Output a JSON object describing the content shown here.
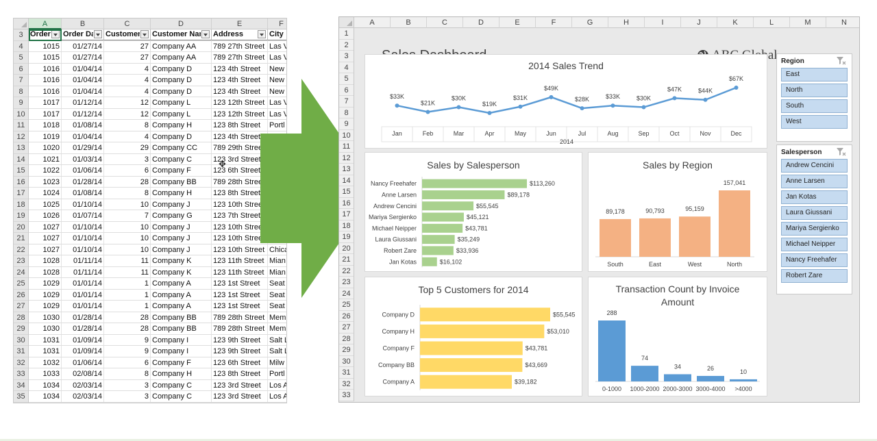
{
  "sheet": {
    "column_letters": [
      "A",
      "B",
      "C",
      "D",
      "E",
      "F"
    ],
    "headers": [
      "Order",
      "Order Da",
      "Customer",
      "Customer Nan",
      "Address",
      "City"
    ],
    "row_numbers": [
      3,
      4,
      5,
      6,
      7,
      8,
      9,
      10,
      11,
      12,
      13,
      14,
      15,
      16,
      17,
      18,
      19,
      20,
      21,
      22,
      23,
      24,
      25,
      26,
      27,
      28,
      29,
      30,
      31,
      32,
      33,
      34,
      35
    ],
    "rows": [
      [
        "1015",
        "01/27/14",
        "27",
        "Company AA",
        "789 27th Street",
        "Las V"
      ],
      [
        "1015",
        "01/27/14",
        "27",
        "Company AA",
        "789 27th Street",
        "Las V"
      ],
      [
        "1016",
        "01/04/14",
        "4",
        "Company D",
        "123 4th Street",
        "New"
      ],
      [
        "1016",
        "01/04/14",
        "4",
        "Company D",
        "123 4th Street",
        "New"
      ],
      [
        "1016",
        "01/04/14",
        "4",
        "Company D",
        "123 4th Street",
        "New"
      ],
      [
        "1017",
        "01/12/14",
        "12",
        "Company L",
        "123 12th Street",
        "Las V"
      ],
      [
        "1017",
        "01/12/14",
        "12",
        "Company L",
        "123 12th Street",
        "Las V"
      ],
      [
        "1018",
        "01/08/14",
        "8",
        "Company H",
        "123 8th Street",
        "Portl"
      ],
      [
        "1019",
        "01/04/14",
        "4",
        "Company D",
        "123 4th Street",
        ""
      ],
      [
        "1020",
        "01/29/14",
        "29",
        "Company CC",
        "789 29th Street",
        ""
      ],
      [
        "1021",
        "01/03/14",
        "3",
        "Company C",
        "123 3rd Street",
        ""
      ],
      [
        "1022",
        "01/06/14",
        "6",
        "Company F",
        "123 6th Street",
        ""
      ],
      [
        "1023",
        "01/28/14",
        "28",
        "Company BB",
        "789 28th Street",
        ""
      ],
      [
        "1024",
        "01/08/14",
        "8",
        "Company H",
        "123 8th Street",
        ""
      ],
      [
        "1025",
        "01/10/14",
        "10",
        "Company J",
        "123 10th Street",
        ""
      ],
      [
        "1026",
        "01/07/14",
        "7",
        "Company G",
        "123 7th Street",
        ""
      ],
      [
        "1027",
        "01/10/14",
        "10",
        "Company J",
        "123 10th Street",
        ""
      ],
      [
        "1027",
        "01/10/14",
        "10",
        "Company J",
        "123 10th Street",
        ""
      ],
      [
        "1027",
        "01/10/14",
        "10",
        "Company J",
        "123 10th Street",
        "Chica"
      ],
      [
        "1028",
        "01/11/14",
        "11",
        "Company K",
        "123 11th Street",
        "Mian"
      ],
      [
        "1028",
        "01/11/14",
        "11",
        "Company K",
        "123 11th Street",
        "Mian"
      ],
      [
        "1029",
        "01/01/14",
        "1",
        "Company A",
        "123 1st Street",
        "Seat"
      ],
      [
        "1029",
        "01/01/14",
        "1",
        "Company A",
        "123 1st Street",
        "Seat"
      ],
      [
        "1029",
        "01/01/14",
        "1",
        "Company A",
        "123 1st Street",
        "Seat"
      ],
      [
        "1030",
        "01/28/14",
        "28",
        "Company BB",
        "789 28th Street",
        "Mem"
      ],
      [
        "1030",
        "01/28/14",
        "28",
        "Company BB",
        "789 28th Street",
        "Mem"
      ],
      [
        "1031",
        "01/09/14",
        "9",
        "Company I",
        "123 9th Street",
        "Salt L"
      ],
      [
        "1031",
        "01/09/14",
        "9",
        "Company I",
        "123 9th Street",
        "Salt L"
      ],
      [
        "1032",
        "01/06/14",
        "6",
        "Company F",
        "123 6th Street",
        "Milw"
      ],
      [
        "1033",
        "02/08/14",
        "8",
        "Company H",
        "123 8th Street",
        "Portl"
      ],
      [
        "1034",
        "02/03/14",
        "3",
        "Company C",
        "123 3rd Street",
        "Los A"
      ],
      [
        "1034",
        "02/03/14",
        "3",
        "Company C",
        "123 3rd Street",
        "Los A"
      ]
    ]
  },
  "dashboard": {
    "column_letters": [
      "A",
      "B",
      "C",
      "D",
      "E",
      "F",
      "G",
      "H",
      "I",
      "J",
      "K",
      "L",
      "M",
      "N"
    ],
    "row_numbers": [
      1,
      2,
      3,
      4,
      5,
      6,
      7,
      8,
      9,
      10,
      11,
      12,
      13,
      14,
      15,
      16,
      17,
      18,
      19,
      20,
      21,
      22,
      23,
      24,
      25,
      26,
      27,
      28,
      29,
      30,
      31,
      32,
      33
    ],
    "title": "Sales Dashboard",
    "brand": "ABC Global",
    "brand_icon": "globe-icon"
  },
  "slicers": {
    "region": {
      "title": "Region",
      "items": [
        "East",
        "North",
        "South",
        "West"
      ]
    },
    "salesperson": {
      "title": "Salesperson",
      "items": [
        "Andrew Cencini",
        "Anne Larsen",
        "Jan Kotas",
        "Laura Giussani",
        "Mariya Sergienko",
        "Michael Neipper",
        "Nancy Freehafer",
        "Robert Zare"
      ]
    }
  },
  "colors": {
    "line": "#5b9bd5",
    "salesperson_bar": "#a9d18e",
    "region_bar": "#f4b183",
    "customer_bar": "#ffd966",
    "invoice_bar": "#5b9bd5",
    "arrow": "#70ad47",
    "slicer_fill": "#c6dbf0"
  },
  "chart_data": [
    {
      "type": "line",
      "title": "2014 Sales Trend",
      "categories": [
        "Jan",
        "Feb",
        "Mar",
        "Apr",
        "May",
        "Jun",
        "Jul",
        "Aug",
        "Sep",
        "Oct",
        "Nov",
        "Dec"
      ],
      "values": [
        33,
        21,
        30,
        19,
        31,
        49,
        28,
        33,
        30,
        47,
        44,
        67
      ],
      "data_labels": [
        "$33K",
        "$21K",
        "$30K",
        "$19K",
        "$31K",
        "$49K",
        "$28K",
        "$33K",
        "$30K",
        "$47K",
        "$44K",
        "$67K"
      ],
      "xlabel": "2014",
      "grid": false
    },
    {
      "type": "bar",
      "orientation": "horizontal",
      "title": "Sales by Salesperson",
      "categories": [
        "Nancy Freehafer",
        "Anne Larsen",
        "Andrew Cencini",
        "Mariya Sergienko",
        "Michael Neipper",
        "Laura Giussani",
        "Robert Zare",
        "Jan Kotas"
      ],
      "values": [
        113260,
        89178,
        55545,
        45121,
        43781,
        35249,
        33936,
        16102
      ],
      "data_labels": [
        "$113,260",
        "$89,178",
        "$55,545",
        "$45,121",
        "$43,781",
        "$35,249",
        "$33,936",
        "$16,102"
      ]
    },
    {
      "type": "bar",
      "title": "Sales by Region",
      "categories": [
        "South",
        "East",
        "West",
        "North"
      ],
      "values": [
        89178,
        90793,
        95159,
        157041
      ],
      "data_labels": [
        "89,178",
        "90,793",
        "95,159",
        "157,041"
      ]
    },
    {
      "type": "bar",
      "orientation": "horizontal",
      "title": "Top 5 Customers for 2014",
      "categories": [
        "Company D",
        "Company H",
        "Company F",
        "Company BB",
        "Company A"
      ],
      "values": [
        55545,
        53010,
        43781,
        43669,
        39182
      ],
      "data_labels": [
        "$55,545",
        "$53,010",
        "$43,781",
        "$43,669",
        "$39,182"
      ]
    },
    {
      "type": "bar",
      "title": "Transaction Count by Invoice Amount",
      "categories": [
        "0-1000",
        "1000-2000",
        "2000-3000",
        "3000-4000",
        ">4000"
      ],
      "values": [
        288,
        74,
        34,
        26,
        10
      ],
      "data_labels": [
        "288",
        "74",
        "34",
        "26",
        "10"
      ]
    }
  ]
}
